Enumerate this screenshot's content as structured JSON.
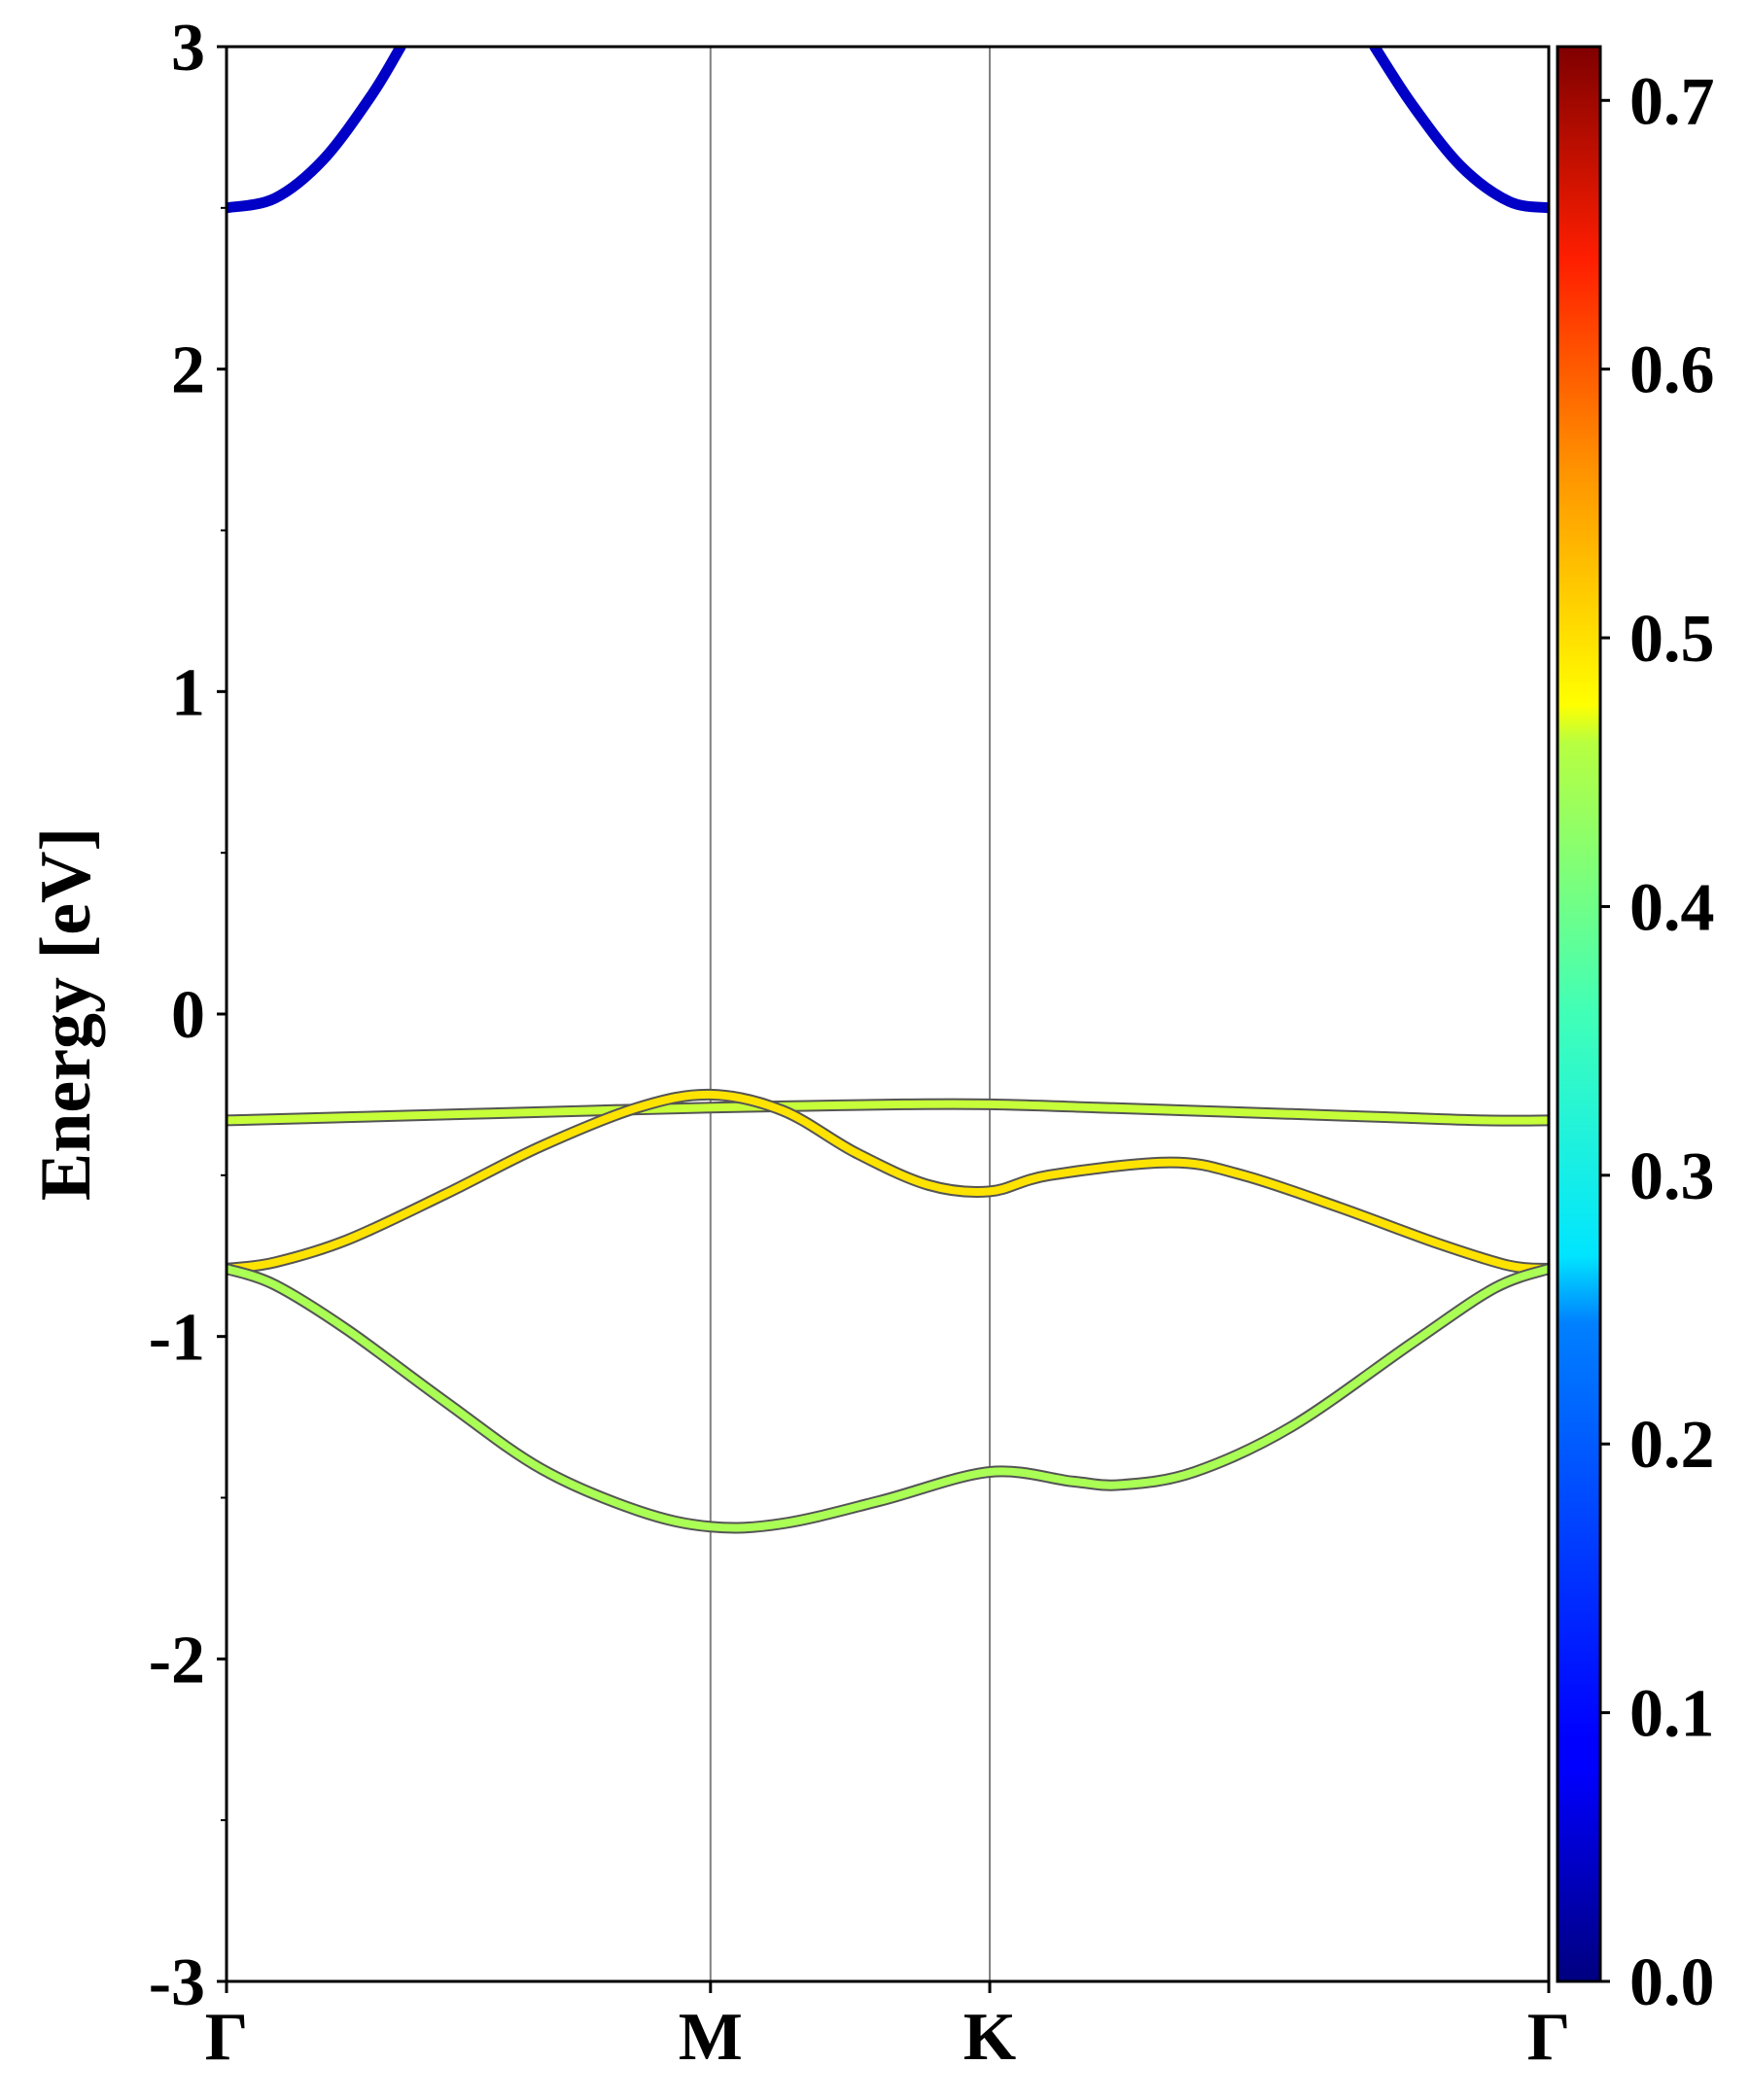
{
  "chart_data": {
    "type": "line",
    "title": "",
    "xlabel": "",
    "ylabel": "Energy [eV]",
    "ylim": [
      -3,
      3
    ],
    "yticks": [
      3,
      2,
      1,
      0,
      -1,
      -2,
      -3
    ],
    "ytick_labels": [
      "3",
      "2",
      "1",
      "0",
      "-1",
      "-2",
      "-3"
    ],
    "xticks": [
      {
        "label": "Γ",
        "x": 0.0
      },
      {
        "label": "M",
        "x": 1.0
      },
      {
        "label": "K",
        "x": 1.577
      },
      {
        "label": "Γ",
        "x": 2.732
      }
    ],
    "xlim": [
      0,
      2.732
    ],
    "grid": false,
    "high_symmetry_lines": true,
    "colorbar": {
      "label": "",
      "range": [
        0.0,
        0.72
      ],
      "ticks": [
        0.0,
        0.1,
        0.2,
        0.3,
        0.4,
        0.5,
        0.6,
        0.7
      ],
      "tick_labels": [
        "0.0",
        "0.1",
        "0.2",
        "0.3",
        "0.4",
        "0.5",
        "0.6",
        "0.7"
      ],
      "colormap": "jet"
    },
    "series": [
      {
        "weight": 0.05,
        "x": [
          0.0,
          0.1,
          0.2,
          0.3,
          0.36
        ],
        "y": [
          2.5,
          2.53,
          2.65,
          2.85,
          3.0
        ]
      },
      {
        "weight": 0.05,
        "x": [
          2.372,
          2.45,
          2.55,
          2.65,
          2.732
        ],
        "y": [
          3.0,
          2.82,
          2.63,
          2.52,
          2.5
        ]
      },
      {
        "weight": 0.41,
        "x": [
          0.0,
          0.25,
          0.5,
          0.75,
          1.0,
          1.2,
          1.4,
          1.577,
          1.8,
          2.0,
          2.2,
          2.4,
          2.6,
          2.732
        ],
        "y": [
          -0.33,
          -0.32,
          -0.31,
          -0.3,
          -0.29,
          -0.285,
          -0.28,
          -0.28,
          -0.29,
          -0.3,
          -0.31,
          -0.32,
          -0.33,
          -0.33
        ]
      },
      {
        "weight": 0.47,
        "x": [
          0.0,
          0.1,
          0.25,
          0.45,
          0.65,
          0.85,
          1.0,
          1.15,
          1.3,
          1.45,
          1.577,
          1.7,
          1.95,
          2.1,
          2.3,
          2.5,
          2.65,
          2.732
        ],
        "y": [
          -0.79,
          -0.77,
          -0.7,
          -0.56,
          -0.41,
          -0.29,
          -0.25,
          -0.3,
          -0.43,
          -0.53,
          -0.55,
          -0.5,
          -0.46,
          -0.5,
          -0.6,
          -0.71,
          -0.78,
          -0.79
        ]
      },
      {
        "weight": 0.39,
        "x": [
          0.0,
          0.1,
          0.25,
          0.45,
          0.65,
          0.85,
          1.0,
          1.15,
          1.35,
          1.577,
          1.75,
          1.85,
          2.0,
          2.2,
          2.45,
          2.62,
          2.732
        ],
        "y": [
          -0.79,
          -0.84,
          -0.98,
          -1.2,
          -1.41,
          -1.54,
          -1.59,
          -1.58,
          -1.51,
          -1.42,
          -1.45,
          -1.46,
          -1.42,
          -1.28,
          -1.02,
          -0.85,
          -0.79
        ]
      }
    ]
  }
}
